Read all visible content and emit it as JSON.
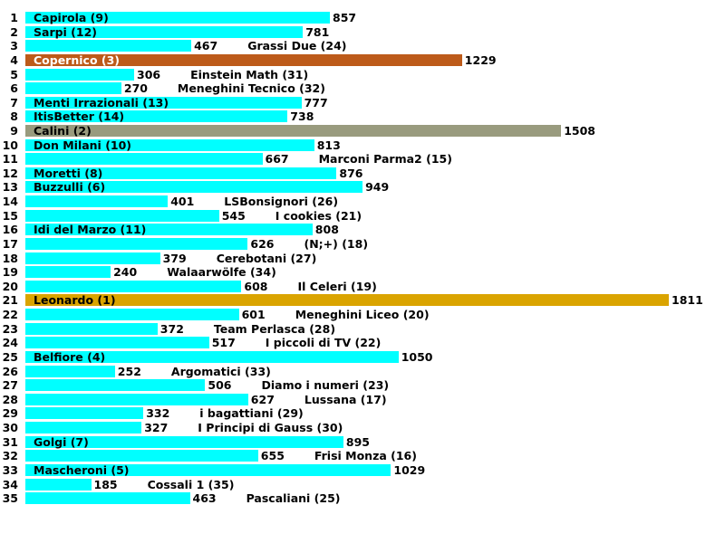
{
  "chart_data": {
    "type": "bar",
    "orientation": "horizontal",
    "title": "",
    "xlabel": "",
    "ylabel": "",
    "grid": false,
    "xlim": [
      0,
      1811
    ],
    "colors": {
      "default": "#00FFFF",
      "highlight": {
        "1": "#DAA400",
        "2": "#999B7E",
        "3": "#BD5B1A"
      },
      "highlight_text": {
        "3": "#FFFFFF"
      }
    },
    "rows": [
      {
        "index": "1",
        "name": "Capirola",
        "rank": 9,
        "value": 857
      },
      {
        "index": "2",
        "name": "Sarpi",
        "rank": 12,
        "value": 781
      },
      {
        "index": "3",
        "name": "Grassi Due",
        "rank": 24,
        "value": 467
      },
      {
        "index": "4",
        "name": "Copernico",
        "rank": 3,
        "value": 1229
      },
      {
        "index": "5",
        "name": "Einstein Math",
        "rank": 31,
        "value": 306
      },
      {
        "index": "6",
        "name": "Meneghini Tecnico",
        "rank": 32,
        "value": 270
      },
      {
        "index": "7",
        "name": "Menti Irrazionali",
        "rank": 13,
        "value": 777
      },
      {
        "index": "8",
        "name": "ItisBetter",
        "rank": 14,
        "value": 738
      },
      {
        "index": "9",
        "name": "Calini",
        "rank": 2,
        "value": 1508
      },
      {
        "index": "10",
        "name": "Don Milani",
        "rank": 10,
        "value": 813
      },
      {
        "index": "11",
        "name": "Marconi Parma2",
        "rank": 15,
        "value": 667
      },
      {
        "index": "12",
        "name": "Moretti",
        "rank": 8,
        "value": 876
      },
      {
        "index": "13",
        "name": "Buzzulli",
        "rank": 6,
        "value": 949
      },
      {
        "index": "14",
        "name": "LSBonsignori",
        "rank": 26,
        "value": 401
      },
      {
        "index": "15",
        "name": "I cookies",
        "rank": 21,
        "value": 545
      },
      {
        "index": "16",
        "name": "Idi del Marzo",
        "rank": 11,
        "value": 808
      },
      {
        "index": "17",
        "name": "(N;+)",
        "rank": 18,
        "value": 626
      },
      {
        "index": "18",
        "name": "Cerebotani",
        "rank": 27,
        "value": 379
      },
      {
        "index": "19",
        "name": "Walaarwölfe",
        "rank": 34,
        "value": 240
      },
      {
        "index": "20",
        "name": "Il Celeri",
        "rank": 19,
        "value": 608
      },
      {
        "index": "21",
        "name": "Leonardo",
        "rank": 1,
        "value": 1811
      },
      {
        "index": "22",
        "name": "Meneghini Liceo",
        "rank": 20,
        "value": 601
      },
      {
        "index": "23",
        "name": "Team Perlasca",
        "rank": 28,
        "value": 372
      },
      {
        "index": "24",
        "name": "I piccoli di TV",
        "rank": 22,
        "value": 517
      },
      {
        "index": "25",
        "name": "Belfiore",
        "rank": 4,
        "value": 1050
      },
      {
        "index": "26",
        "name": "Argomatici",
        "rank": 33,
        "value": 252
      },
      {
        "index": "27",
        "name": "Diamo i numeri",
        "rank": 23,
        "value": 506
      },
      {
        "index": "28",
        "name": "Lussana",
        "rank": 17,
        "value": 627
      },
      {
        "index": "29",
        "name": "i bagattiani",
        "rank": 29,
        "value": 332
      },
      {
        "index": "30",
        "name": "I Principi di Gauss",
        "rank": 30,
        "value": 327
      },
      {
        "index": "31",
        "name": "Golgi",
        "rank": 7,
        "value": 895
      },
      {
        "index": "32",
        "name": "Frisi Monza",
        "rank": 16,
        "value": 655
      },
      {
        "index": "33",
        "name": "Mascheroni",
        "rank": 5,
        "value": 1029
      },
      {
        "index": "34",
        "name": "Cossali 1",
        "rank": 35,
        "value": 185
      },
      {
        "index": "35",
        "name": "Pascaliani",
        "rank": 25,
        "value": 463
      }
    ],
    "label_rule": "Top 14 ranked teams show 'Name (rank)' inside the bar; others show it to the right of the value"
  }
}
